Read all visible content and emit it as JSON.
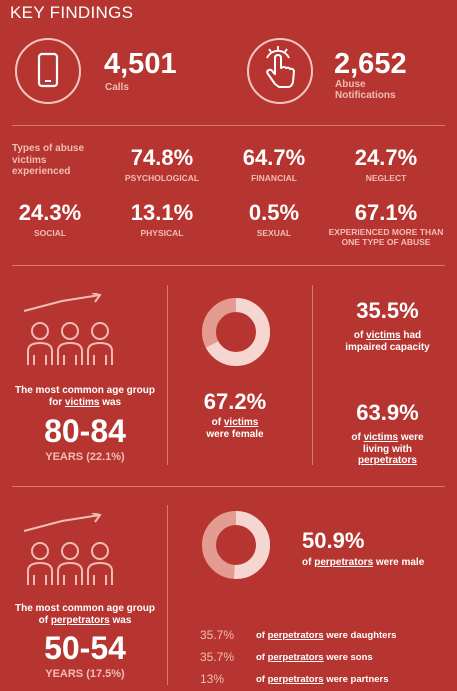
{
  "title": "KEY FINDINGS",
  "icons": {
    "phone": "phone-icon",
    "touch": "touch-hand-icon",
    "people": "people-growth-icon",
    "donut": "donut-chart-icon"
  },
  "calls": {
    "value": "4,501",
    "label": "Calls"
  },
  "notifications": {
    "value": "2,652",
    "label": "Abuse Notifications"
  },
  "types_label": "Types of abuse victims experienced",
  "abuse_types": [
    {
      "value": "74.8%",
      "label": "PSYCHOLOGICAL"
    },
    {
      "value": "64.7%",
      "label": "FINANCIAL"
    },
    {
      "value": "24.7%",
      "label": "NEGLECT"
    },
    {
      "value": "24.3%",
      "label": "SOCIAL"
    },
    {
      "value": "13.1%",
      "label": "PHYSICAL"
    },
    {
      "value": "0.5%",
      "label": "SEXUAL"
    },
    {
      "value": "67.1%",
      "label": "EXPERIENCED MORE THAN ONE TYPE OF ABUSE"
    }
  ],
  "victims": {
    "age_pre": "The most common age group for ",
    "age_link": "victims",
    "age_post": " was",
    "age_value": "80-84",
    "age_sub": "YEARS (22.1%)",
    "female_pct": "67.2%",
    "female_share": 67.2,
    "female_pre": "of ",
    "female_link": "victims",
    "female_post": "were female",
    "impaired_pct": "35.5%",
    "impaired_pre": "of ",
    "impaired_link": "victims",
    "impaired_post1": " had",
    "impaired_post2": "impaired capacity",
    "living_pct": "63.9%",
    "living_pre": "of ",
    "living_link": "victims",
    "living_post1": " were",
    "living_post2": "living with",
    "living_link2": "perpetrators"
  },
  "perpetrators": {
    "age_pre": "The most common age group of ",
    "age_link": "perpetrators",
    "age_post": " was",
    "age_value": "50-54",
    "age_sub": "YEARS (17.5%)",
    "male_pct": "50.9%",
    "male_share": 50.9,
    "male_pre": "of ",
    "male_link": "perpetrators",
    "male_post": " were male",
    "relations": [
      {
        "pct": "35.7%",
        "pre": "of ",
        "link": "perpetrators",
        "post": " were daughters"
      },
      {
        "pct": "35.7%",
        "pre": "of ",
        "link": "perpetrators",
        "post": " were sons"
      },
      {
        "pct": "13%",
        "pre": "of ",
        "link": "perpetrators",
        "post": " were partners"
      }
    ]
  }
}
